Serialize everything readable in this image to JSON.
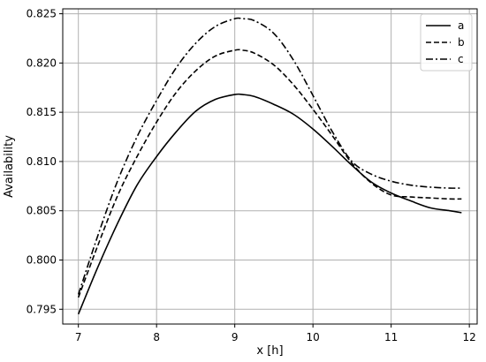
{
  "chart_data": {
    "type": "line",
    "title": "",
    "xlabel": "x [h]",
    "ylabel": "Availability",
    "xlim": [
      6.8,
      12.1
    ],
    "ylim": [
      0.7935,
      0.8255
    ],
    "xticks": [
      7,
      8,
      9,
      10,
      11,
      12
    ],
    "yticks": [
      0.795,
      0.8,
      0.805,
      0.81,
      0.815,
      0.82,
      0.825
    ],
    "ytick_labels": [
      "0.795",
      "0.800",
      "0.805",
      "0.810",
      "0.815",
      "0.820",
      "0.825"
    ],
    "xtick_labels": [
      "7",
      "8",
      "9",
      "10",
      "11",
      "12"
    ],
    "grid": true,
    "legend_position": "top-right",
    "series": [
      {
        "name": "a",
        "line_style": "solid",
        "color": "#000000",
        "x": [
          7.0,
          7.25,
          7.5,
          7.75,
          8.0,
          8.25,
          8.5,
          8.75,
          9.0,
          9.1,
          9.25,
          9.5,
          9.75,
          10.0,
          10.25,
          10.5,
          10.75,
          11.0,
          11.25,
          11.5,
          11.75,
          11.9
        ],
        "y": [
          0.7945,
          0.7993,
          0.8037,
          0.8076,
          0.8105,
          0.813,
          0.8151,
          0.8163,
          0.8168,
          0.8168,
          0.8166,
          0.8158,
          0.8148,
          0.8133,
          0.8115,
          0.8096,
          0.8079,
          0.8068,
          0.806,
          0.8053,
          0.805,
          0.8048
        ]
      },
      {
        "name": "b",
        "line_style": "dashed",
        "color": "#000000",
        "x": [
          7.0,
          7.25,
          7.5,
          7.75,
          8.0,
          8.25,
          8.5,
          8.75,
          9.0,
          9.1,
          9.25,
          9.5,
          9.75,
          10.0,
          10.25,
          10.5,
          10.75,
          11.0,
          11.25,
          11.5,
          11.75,
          11.9
        ],
        "y": [
          0.7962,
          0.8015,
          0.8065,
          0.8105,
          0.814,
          0.817,
          0.8192,
          0.8207,
          0.8213,
          0.8213,
          0.821,
          0.8198,
          0.8178,
          0.8153,
          0.8126,
          0.8098,
          0.8078,
          0.8066,
          0.8064,
          0.8063,
          0.8062,
          0.8062
        ]
      },
      {
        "name": "c",
        "line_style": "dashdot",
        "color": "#000000",
        "x": [
          7.0,
          7.25,
          7.5,
          7.75,
          8.0,
          8.25,
          8.5,
          8.75,
          9.0,
          9.1,
          9.25,
          9.5,
          9.75,
          10.0,
          10.25,
          10.5,
          10.75,
          11.0,
          11.25,
          11.5,
          11.75,
          11.9
        ],
        "y": [
          0.7965,
          0.8025,
          0.808,
          0.8125,
          0.8162,
          0.8195,
          0.822,
          0.8237,
          0.8245,
          0.8245,
          0.8243,
          0.823,
          0.8203,
          0.8167,
          0.813,
          0.81,
          0.8087,
          0.808,
          0.8076,
          0.8074,
          0.8073,
          0.8073
        ]
      }
    ]
  }
}
